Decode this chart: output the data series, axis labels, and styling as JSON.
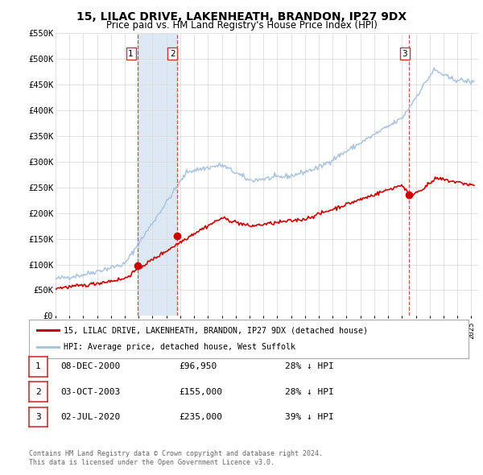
{
  "title": "15, LILAC DRIVE, LAKENHEATH, BRANDON, IP27 9DX",
  "subtitle": "Price paid vs. HM Land Registry's House Price Index (HPI)",
  "title_fontsize": 10,
  "subtitle_fontsize": 8.5,
  "ylim": [
    0,
    550000
  ],
  "yticks": [
    0,
    50000,
    100000,
    150000,
    200000,
    250000,
    300000,
    350000,
    400000,
    450000,
    500000,
    550000
  ],
  "ytick_labels": [
    "£0",
    "£50K",
    "£100K",
    "£150K",
    "£200K",
    "£250K",
    "£300K",
    "£350K",
    "£400K",
    "£450K",
    "£500K",
    "£550K"
  ],
  "xlim_start": 1995.0,
  "xlim_end": 2025.5,
  "sale_dates": [
    2000.937,
    2003.747,
    2020.497
  ],
  "sale_prices": [
    96950,
    155000,
    235000
  ],
  "sale_labels": [
    "1",
    "2",
    "3"
  ],
  "hpi_color": "#aac4e0",
  "price_color": "#cc0000",
  "sale_marker_color": "#cc0000",
  "shading_color": "#dce9f5",
  "shade1_start": 2000.937,
  "shade1_end": 2003.747,
  "legend_entries": [
    "15, LILAC DRIVE, LAKENHEATH, BRANDON, IP27 9DX (detached house)",
    "HPI: Average price, detached house, West Suffolk"
  ],
  "legend_colors": [
    "#cc0000",
    "#aac4e0"
  ],
  "table_rows": [
    {
      "num": "1",
      "date": "08-DEC-2000",
      "price": "£96,950",
      "hpi": "28% ↓ HPI"
    },
    {
      "num": "2",
      "date": "03-OCT-2003",
      "price": "£155,000",
      "hpi": "28% ↓ HPI"
    },
    {
      "num": "3",
      "date": "02-JUL-2020",
      "price": "£235,000",
      "hpi": "39% ↓ HPI"
    }
  ],
  "footnote1": "Contains HM Land Registry data © Crown copyright and database right 2024.",
  "footnote2": "This data is licensed under the Open Government Licence v3.0.",
  "background_color": "#ffffff",
  "grid_color": "#dddddd"
}
